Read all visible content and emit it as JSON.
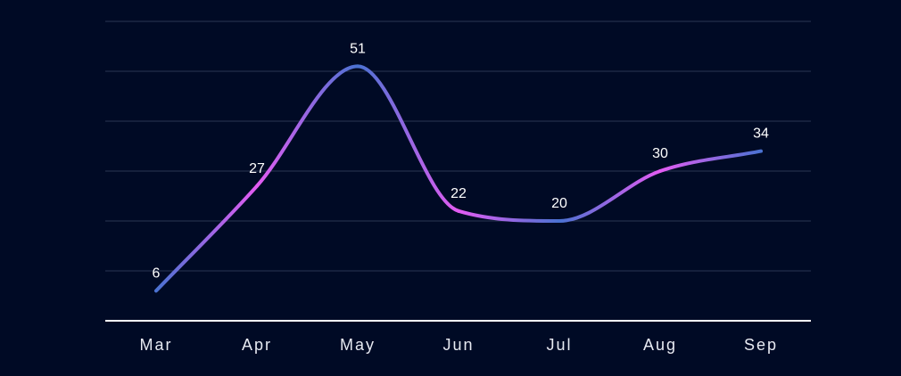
{
  "chart_data": {
    "type": "line",
    "smooth": true,
    "categories": [
      "Mar",
      "Apr",
      "May",
      "Jun",
      "Jul",
      "Aug",
      "Sep"
    ],
    "values": [
      6,
      27,
      51,
      22,
      20,
      30,
      34
    ],
    "ylim": [
      0,
      60
    ],
    "grid": true,
    "data_labels": true,
    "legend": "none",
    "colors": {
      "background": "#000a25",
      "line_gradient_a": "#4a72d2",
      "line_gradient_b": "#e35cf2",
      "grid": "#2a3552",
      "axis": "#ffffff"
    }
  }
}
